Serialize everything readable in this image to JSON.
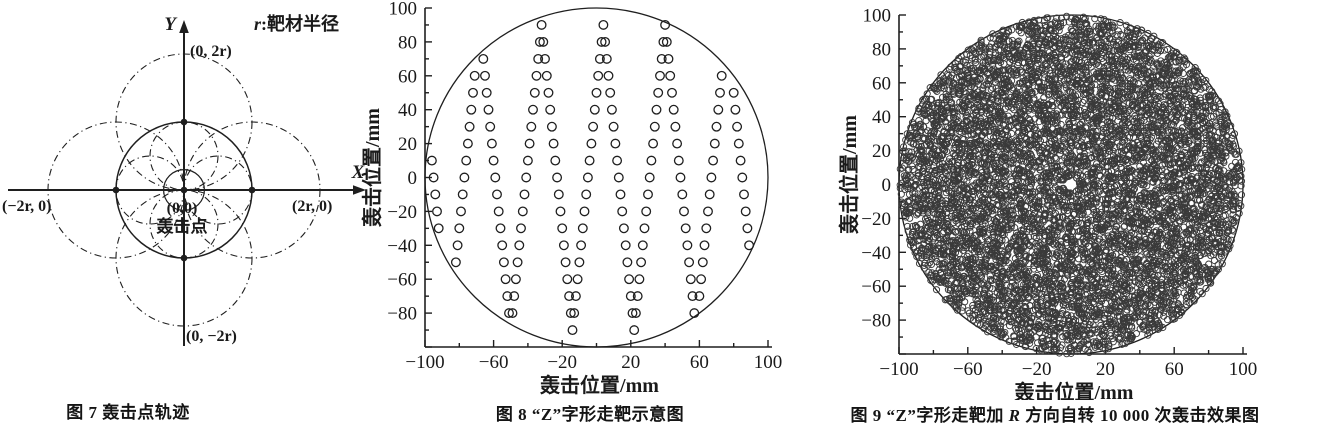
{
  "page": {
    "background": "#ffffff",
    "ink": "#1f1f1f",
    "cloud_ink": "#3a3a3a"
  },
  "chart_data": [
    {
      "type": "diagram",
      "id": "fig7",
      "caption": "图 7  轰击点轨迹",
      "legend_prefix": "r",
      "legend_suffix": ":靶材半径",
      "axis_label_x": "X",
      "axis_label_y": "Y",
      "point_label_top": "(0, 2r)",
      "point_label_bottom": "(0, −2r)",
      "point_label_left": "(−2r, 0)",
      "point_label_right": "(2r, 0)",
      "point_label_origin": "(0,0)",
      "origin_name": "轰击点",
      "unit": "r = target radius",
      "solid_circles": [
        {
          "cx": 0,
          "cy": 0,
          "r": 1
        },
        {
          "cx": 0,
          "cy": 0,
          "r": 0.3
        }
      ],
      "dashdot_circles": [
        {
          "cx": 1,
          "cy": 0,
          "r": 1
        },
        {
          "cx": -1,
          "cy": 0,
          "r": 1
        },
        {
          "cx": 0,
          "cy": 1,
          "r": 1
        },
        {
          "cx": 0,
          "cy": -1,
          "r": 1
        },
        {
          "cx": 0.5,
          "cy": 0,
          "r": 0.5
        },
        {
          "cx": -0.5,
          "cy": 0,
          "r": 0.5
        },
        {
          "cx": 0,
          "cy": 0.5,
          "r": 0.5
        },
        {
          "cx": 0,
          "cy": -0.5,
          "r": 0.5
        }
      ],
      "dots": [
        [
          0,
          0
        ],
        [
          1,
          0
        ],
        [
          -1,
          0
        ],
        [
          0,
          1
        ],
        [
          0,
          -1
        ]
      ]
    },
    {
      "type": "scatter",
      "id": "fig8",
      "caption": "图 8  “Z”字形走靶示意图",
      "xlabel": "轰击位置/mm",
      "ylabel": "轰击位置/mm",
      "xlim": [
        -100,
        100
      ],
      "ylim": [
        -100,
        100
      ],
      "xticks_major": [
        -100,
        -60,
        -20,
        20,
        60,
        100
      ],
      "xticks_minor": [
        -80,
        -40,
        0,
        40,
        80
      ],
      "yticks_major": [
        100,
        80,
        60,
        40,
        20,
        0,
        -20,
        -40,
        -60,
        -80,
        -100
      ],
      "yticks_minor": [
        90,
        70,
        50,
        30,
        10,
        -10,
        -30,
        -50,
        -70,
        -90
      ],
      "ytick_labels": [
        100,
        80,
        60,
        40,
        20,
        0,
        -20,
        -40,
        -60,
        -80
      ],
      "boundary_circle_radius": 100,
      "marker": "open-circle",
      "marker_radius_mm": 2.5,
      "generator": {
        "pattern": "Z-raster",
        "note": "bombardment spots sampled every 10 mm of Y travel along a Z (zig-zag) scan; top apexes at x=-104..76 step 36, each diagonal drops 180 mm in Y while advancing 18 mm in X; points outside the target disc are not hit",
        "x_start": -104,
        "x_end": 112,
        "diagonal_dx": 18,
        "y_top": 90,
        "y_bottom": -90,
        "y_step": 10,
        "clip_radius": 98.5
      }
    },
    {
      "type": "scatter",
      "id": "fig9",
      "caption_parts": {
        "prefix": "图 9  “Z”字形走靶加 ",
        "var": "R",
        "suffix": " 方向自转 10 000 次轰击效果图"
      },
      "xlabel": "轰击位置/mm",
      "ylabel": "轰击位置/mm",
      "xlim": [
        -100,
        100
      ],
      "ylim": [
        -100,
        100
      ],
      "xticks_major": [
        -100,
        -60,
        -20,
        20,
        60,
        100
      ],
      "xticks_minor": [
        -80,
        -40,
        0,
        40,
        80
      ],
      "yticks_major": [
        100,
        80,
        60,
        40,
        20,
        0,
        -20,
        -40,
        -60,
        -80,
        -100
      ],
      "yticks_minor": [
        90,
        70,
        50,
        30,
        10,
        -10,
        -30,
        -50,
        -70,
        -90
      ],
      "ytick_labels": [
        100,
        80,
        60,
        40,
        20,
        0,
        -20,
        -40,
        -60,
        -80
      ],
      "boundary_circle_radius": 100,
      "marker": "open-circle",
      "marker_radius_mm": 1.8,
      "generator": {
        "pattern": "Z-raster-with-self-rotation",
        "note": "same Z scan sampled 10 000 times while target spins about R; each sample rotated by cumulative angle, producing the dense moire-covered disc",
        "n_points": 10000,
        "x_turn_low": -104,
        "x_turn_high": 112,
        "y_top": 90,
        "y_bottom": -90,
        "y_step_mm": 1.8,
        "x_step_mm": 0.18,
        "rotation_per_step_rad": 2.3999632,
        "clip_radius": 100
      }
    }
  ]
}
